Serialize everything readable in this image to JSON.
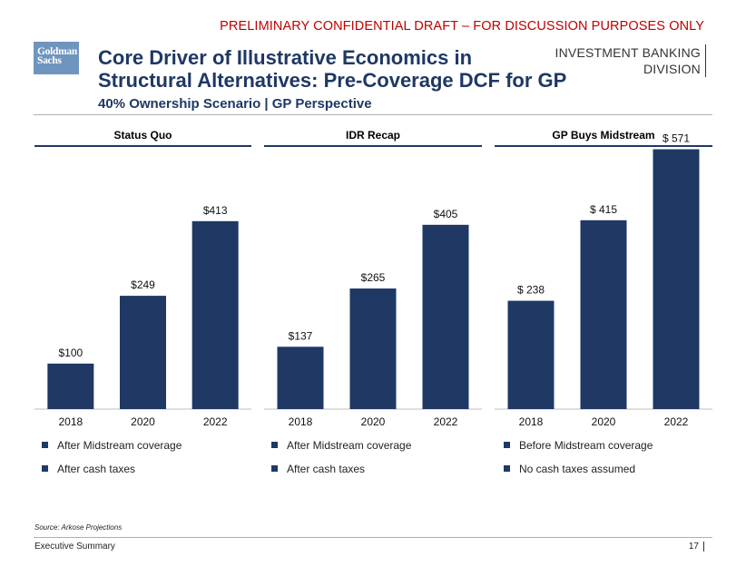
{
  "banner": "PRELIMINARY CONFIDENTIAL DRAFT – FOR DISCUSSION PURPOSES ONLY",
  "logo": {
    "line1": "Goldman",
    "line2": "Sachs"
  },
  "title_line1": "Core Driver of Illustrative Economics in",
  "title_line2": "Structural Alternatives: Pre-Coverage DCF for GP",
  "subtitle": "40% Ownership Scenario | GP Perspective",
  "division": {
    "line1": "INVESTMENT BANKING",
    "line2": "DIVISION"
  },
  "colors": {
    "bar": "#1f3864",
    "banner": "#c00000",
    "title": "#1f3864"
  },
  "chart_data": [
    {
      "type": "bar",
      "title": "Status Quo",
      "categories": [
        "2018",
        "2020",
        "2022"
      ],
      "values": [
        100,
        249,
        413
      ],
      "labels": [
        "$100",
        "$249",
        "$413"
      ],
      "ylim": [
        0,
        600
      ],
      "legend": [
        "After Midstream coverage",
        "After cash taxes"
      ]
    },
    {
      "type": "bar",
      "title": "IDR Recap",
      "categories": [
        "2018",
        "2020",
        "2022"
      ],
      "values": [
        137,
        265,
        405
      ],
      "labels": [
        "$137",
        "$265",
        "$405"
      ],
      "ylim": [
        0,
        600
      ],
      "legend": [
        "After Midstream coverage",
        "After cash taxes"
      ]
    },
    {
      "type": "bar",
      "title": "GP Buys Midstream",
      "categories": [
        "2018",
        "2020",
        "2022"
      ],
      "values": [
        238,
        415,
        571
      ],
      "labels": [
        "$ 238",
        "$ 415",
        "$ 571"
      ],
      "ylim": [
        0,
        600
      ],
      "legend": [
        "Before Midstream coverage",
        "No cash taxes assumed"
      ]
    }
  ],
  "source": "Source: Arkose Projections",
  "footer": {
    "section": "Executive Summary",
    "page": "17"
  }
}
